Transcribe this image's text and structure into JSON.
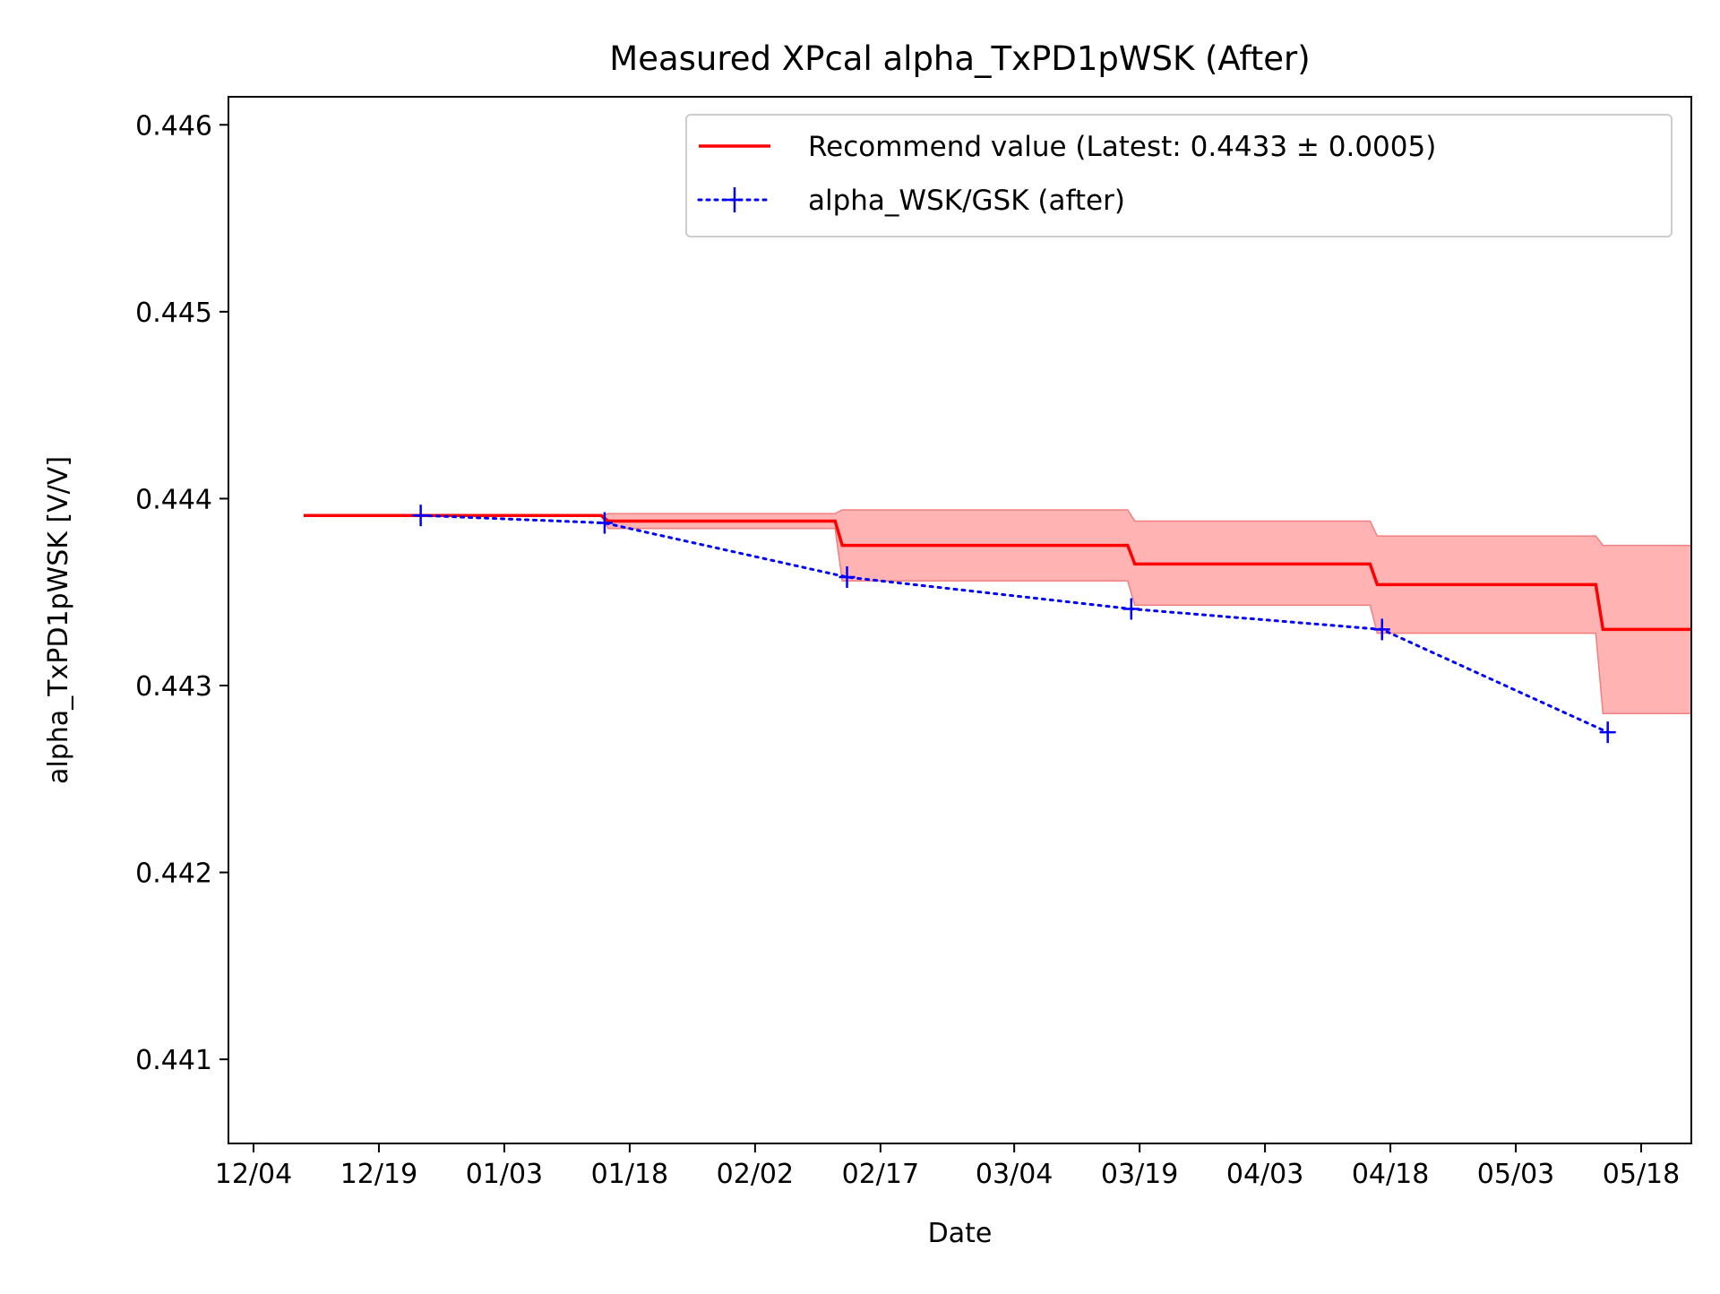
{
  "chart_data": {
    "type": "line",
    "title": "Measured XPcal alpha_TxPD1pWSK (After)",
    "xlabel": "Date",
    "ylabel": "alpha_TxPD1pWSK [V/V]",
    "xlim": [
      "12-01",
      "05-24"
    ],
    "ylim": [
      0.44055,
      0.44615
    ],
    "x_ticks": [
      "12/04",
      "12/19",
      "01/03",
      "01/18",
      "02/02",
      "02/17",
      "03/04",
      "03/19",
      "04/03",
      "04/18",
      "05/03",
      "05/18"
    ],
    "x_tick_dates": [
      "12-04",
      "12-19",
      "01-03",
      "01-18",
      "02-02",
      "02-17",
      "03-04",
      "03-19",
      "04-03",
      "04-18",
      "05-03",
      "05-18"
    ],
    "y_ticks": [
      "0.441",
      "0.442",
      "0.443",
      "0.444",
      "0.445",
      "0.446"
    ],
    "y_tick_values": [
      0.441,
      0.442,
      0.443,
      0.444,
      0.445,
      0.446
    ],
    "grid": false,
    "legend_position": "top-right",
    "series": [
      {
        "name": "Recommend value (Latest: 0.4433 ± 0.0005)",
        "style": "step-line-with-band",
        "color": "#ff0000",
        "band_color": "#ffb3b3",
        "steps": [
          {
            "start": "12-10",
            "end": "01-15",
            "value": 0.44391,
            "lo": 0.44391,
            "hi": 0.44391
          },
          {
            "start": "01-15",
            "end": "02-12",
            "value": 0.44388,
            "lo": 0.44384,
            "hi": 0.44392
          },
          {
            "start": "02-12",
            "end": "03-18",
            "value": 0.44375,
            "lo": 0.44356,
            "hi": 0.44394
          },
          {
            "start": "03-18",
            "end": "04-16",
            "value": 0.44365,
            "lo": 0.44343,
            "hi": 0.44388
          },
          {
            "start": "04-16",
            "end": "05-13",
            "value": 0.44354,
            "lo": 0.44328,
            "hi": 0.4438
          },
          {
            "start": "05-13",
            "end": "05-24",
            "value": 0.4433,
            "lo": 0.44285,
            "hi": 0.44375
          }
        ]
      },
      {
        "name": "alpha_WSK/GSK (after)",
        "style": "dotted-markers",
        "color": "#0000ff",
        "marker": "plus",
        "points": [
          {
            "x": "12-24",
            "y": 0.44391
          },
          {
            "x": "01-15",
            "y": 0.44387
          },
          {
            "x": "02-13",
            "y": 0.44358
          },
          {
            "x": "03-18",
            "y": 0.44341
          },
          {
            "x": "04-17",
            "y": 0.4433
          },
          {
            "x": "05-14",
            "y": 0.44275
          }
        ]
      }
    ]
  }
}
